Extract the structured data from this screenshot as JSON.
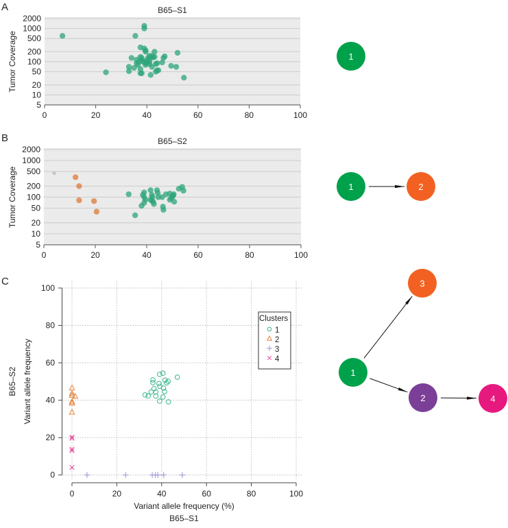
{
  "chart_data": [
    {
      "id": "A",
      "panel_label": "A",
      "type": "scatter",
      "title": "B65–S1",
      "xlabel": "",
      "ylabel": "Tumor Coverage",
      "xlim": [
        0,
        100
      ],
      "ylim": [
        5,
        2000
      ],
      "yscale": "log",
      "xticks": [
        0,
        20,
        40,
        60,
        80,
        100
      ],
      "yticks": [
        5,
        10,
        20,
        50,
        100,
        200,
        500,
        1000,
        2000
      ],
      "grid": true,
      "series": [
        {
          "name": "cluster 1",
          "color": "#2ea57a",
          "points": [
            [
              7,
              600
            ],
            [
              24,
              48
            ],
            [
              33,
              52
            ],
            [
              33,
              70
            ],
            [
              34,
              130
            ],
            [
              35,
              65
            ],
            [
              35.5,
              600
            ],
            [
              36,
              90
            ],
            [
              36,
              115
            ],
            [
              36.5,
              80
            ],
            [
              37,
              100
            ],
            [
              37.5,
              60
            ],
            [
              37.5,
              45
            ],
            [
              37.5,
              270
            ],
            [
              37.5,
              140
            ],
            [
              38,
              130
            ],
            [
              38,
              110
            ],
            [
              38,
              45
            ],
            [
              38.5,
              100
            ],
            [
              39,
              1200
            ],
            [
              39,
              1000
            ],
            [
              39,
              250
            ],
            [
              39.5,
              200
            ],
            [
              39.5,
              220
            ],
            [
              39.5,
              90
            ],
            [
              39.5,
              80
            ],
            [
              40,
              110
            ],
            [
              40,
              95
            ],
            [
              40.5,
              130
            ],
            [
              41,
              150
            ],
            [
              41,
              100
            ],
            [
              41,
              85
            ],
            [
              41.5,
              40
            ],
            [
              41.5,
              130
            ],
            [
              42,
              70
            ],
            [
              42,
              150
            ],
            [
              42.5,
              135
            ],
            [
              43,
              200
            ],
            [
              43,
              140
            ],
            [
              43.5,
              85
            ],
            [
              43.5,
              50
            ],
            [
              44,
              90
            ],
            [
              44,
              55
            ],
            [
              44.5,
              55
            ],
            [
              46,
              95
            ],
            [
              46.5,
              130
            ],
            [
              47,
              145
            ],
            [
              49.5,
              75
            ],
            [
              51.5,
              70
            ],
            [
              52,
              185
            ],
            [
              54.5,
              33
            ]
          ]
        }
      ]
    },
    {
      "id": "B",
      "panel_label": "B",
      "type": "scatter",
      "title": "B65–S2",
      "xlabel": "",
      "ylabel": "Tumor Coverage",
      "xlim": [
        0,
        100
      ],
      "ylim": [
        5,
        2000
      ],
      "yscale": "log",
      "xticks": [
        0,
        20,
        40,
        60,
        80,
        100
      ],
      "yticks": [
        5,
        10,
        20,
        50,
        100,
        200,
        500,
        1000,
        2000
      ],
      "grid": true,
      "series": [
        {
          "name": "unassigned",
          "color": "#b5b5b5",
          "small": true,
          "points": [
            [
              4,
              450
            ]
          ]
        },
        {
          "name": "cluster 2",
          "color": "#df7a36",
          "points": [
            [
              12.3,
              350
            ],
            [
              13.7,
              200
            ],
            [
              13.7,
              82
            ],
            [
              19.5,
              78
            ],
            [
              20.5,
              40
            ]
          ]
        },
        {
          "name": "cluster 1",
          "color": "#2ea57a",
          "points": [
            [
              33,
              120
            ],
            [
              35.5,
              32
            ],
            [
              38,
              58
            ],
            [
              38.5,
              115
            ],
            [
              39,
              135
            ],
            [
              39,
              100
            ],
            [
              39,
              70
            ],
            [
              39.5,
              85
            ],
            [
              41.5,
              155
            ],
            [
              41.5,
              85
            ],
            [
              42,
              80
            ],
            [
              42,
              115
            ],
            [
              42.2,
              100
            ],
            [
              42.5,
              75
            ],
            [
              42.8,
              65
            ],
            [
              44,
              155
            ],
            [
              44.3,
              130
            ],
            [
              44.5,
              100
            ],
            [
              46,
              100
            ],
            [
              46.3,
              55
            ],
            [
              46.5,
              45
            ],
            [
              47.5,
              120
            ],
            [
              49,
              85
            ],
            [
              49,
              125
            ],
            [
              49.5,
              95
            ],
            [
              50,
              105
            ],
            [
              50.3,
              110
            ],
            [
              50.5,
              120
            ],
            [
              50.7,
              75
            ],
            [
              52.5,
              170
            ],
            [
              53.8,
              190
            ],
            [
              54.3,
              150
            ]
          ]
        }
      ]
    },
    {
      "id": "C",
      "panel_label": "C",
      "type": "scatter",
      "title": "",
      "xlabel": "Variant allele frequency (%)",
      "xlabel2": "B65–S1",
      "ylabel": "Variant allele frequency",
      "ylabel2": "B65–S2",
      "xlim": [
        0,
        100
      ],
      "ylim": [
        0,
        100
      ],
      "xticks": [
        0,
        20,
        40,
        60,
        80,
        100
      ],
      "yticks": [
        0,
        20,
        40,
        60,
        80,
        100
      ],
      "grid": true,
      "legend": {
        "title": "Clusters",
        "placement": "top-right"
      },
      "series": [
        {
          "name": "1",
          "marker": "circle",
          "color": "#3bb38c",
          "points": [
            [
              32.6,
              42.8
            ],
            [
              34.0,
              42.3
            ],
            [
              35.3,
              44.4
            ],
            [
              36.6,
              46.2
            ],
            [
              37.4,
              44.4
            ],
            [
              37.4,
              42.2
            ],
            [
              36.1,
              50.9
            ],
            [
              36.1,
              49.4
            ],
            [
              38.8,
              48.9
            ],
            [
              39.1,
              53.8
            ],
            [
              40.6,
              54.4
            ],
            [
              39.2,
              47.4
            ],
            [
              40.8,
              46.5
            ],
            [
              41.5,
              50.7
            ],
            [
              42.2,
              49.3
            ],
            [
              42.9,
              50.1
            ],
            [
              41.3,
              44.6
            ],
            [
              40.6,
              41.7
            ],
            [
              39.1,
              39.5
            ],
            [
              43.0,
              39.1
            ],
            [
              47.0,
              52.3
            ]
          ]
        },
        {
          "name": "2",
          "marker": "triangle",
          "color": "#e8823a",
          "points": [
            [
              0,
              46.5
            ],
            [
              0,
              43.5
            ],
            [
              0,
              42.5
            ],
            [
              0,
              39.1
            ],
            [
              0,
              38.3
            ],
            [
              0,
              33.5
            ],
            [
              1.4,
              42
            ]
          ]
        },
        {
          "name": "3",
          "marker": "plus",
          "color": "#9c90d2",
          "points": [
            [
              6.7,
              0
            ],
            [
              23.9,
              0
            ],
            [
              35.8,
              0
            ],
            [
              37.2,
              0
            ],
            [
              38.3,
              0
            ],
            [
              40.9,
              0
            ],
            [
              49.2,
              0
            ]
          ]
        },
        {
          "name": "4",
          "marker": "x",
          "color": "#e5479a",
          "points": [
            [
              0,
              20.3
            ],
            [
              0,
              19.6
            ],
            [
              0,
              13.8
            ],
            [
              0,
              13
            ],
            [
              0,
              4
            ]
          ]
        }
      ]
    }
  ],
  "trees": {
    "A": {
      "nodes": [
        {
          "label": "1",
          "color": "#00a14b"
        }
      ],
      "edges": []
    },
    "B": {
      "nodes": [
        {
          "label": "1",
          "color": "#00a14b"
        },
        {
          "label": "2",
          "color": "#f26122"
        }
      ],
      "edges": [
        [
          "1",
          "2"
        ]
      ]
    },
    "C": {
      "nodes": [
        {
          "label": "1",
          "color": "#00a14b"
        },
        {
          "label": "3",
          "color": "#f26122"
        },
        {
          "label": "2",
          "color": "#7b3f98"
        },
        {
          "label": "4",
          "color": "#e6197e"
        }
      ],
      "edges": [
        [
          "1",
          "3"
        ],
        [
          "1",
          "2"
        ],
        [
          "2",
          "4"
        ]
      ]
    }
  }
}
